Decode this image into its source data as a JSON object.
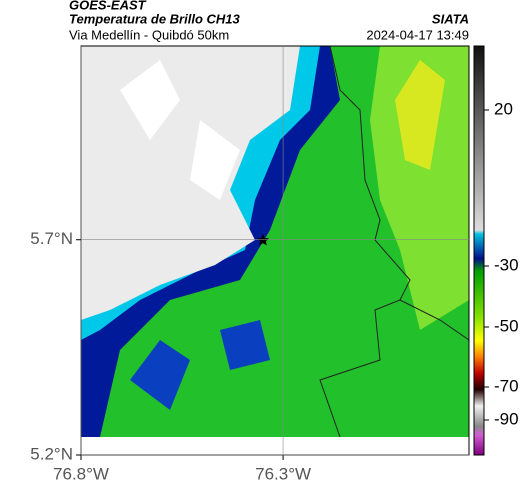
{
  "header": {
    "source": "GOES-EAST",
    "title": "Temperatura de Brillo CH13",
    "agency": "SIATA",
    "subtitle": "Via Medellín - Quibdó 50km",
    "timestamp": "2024-04-17 13:49"
  },
  "map": {
    "xlim": [
      -76.8,
      -75.84
    ],
    "ylim": [
      5.2,
      6.15
    ],
    "xticks": [
      {
        "value": -76.8,
        "label": "76.8°W"
      },
      {
        "value": -76.3,
        "label": "76.3°W"
      }
    ],
    "yticks": [
      {
        "value": 5.7,
        "label": "5.7°N"
      },
      {
        "value": 5.2,
        "label": "5.2°N"
      }
    ],
    "grid": true
  },
  "colorbar": {
    "ticks": [
      20,
      -30,
      -50,
      -70,
      -90
    ]
  }
}
